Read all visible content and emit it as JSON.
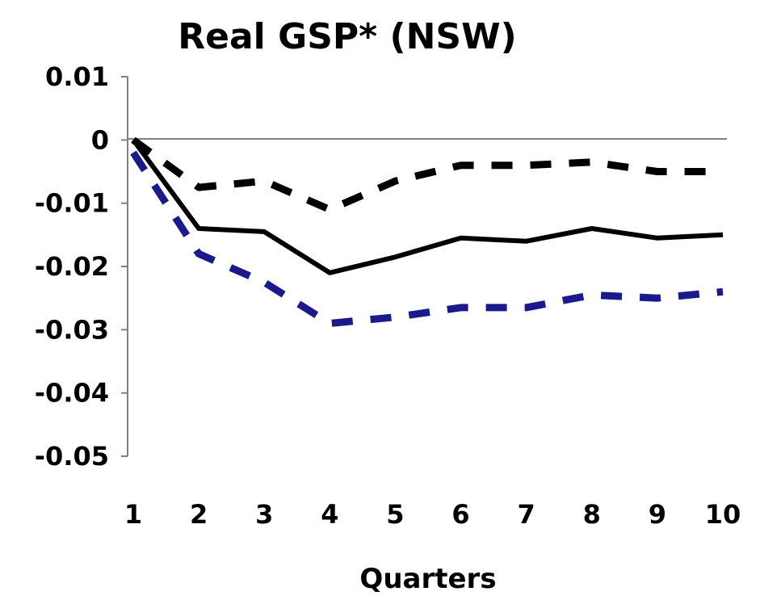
{
  "chart_data": {
    "type": "line",
    "title": "Real GSP* (NSW)",
    "xlabel": "Quarters",
    "ylabel": "",
    "x": [
      1,
      2,
      3,
      4,
      5,
      6,
      7,
      8,
      9,
      10
    ],
    "x_tick_labels": [
      "1",
      "2",
      "3",
      "4",
      "5",
      "6",
      "7",
      "8",
      "9",
      "10"
    ],
    "ylim": [
      -0.05,
      0.01
    ],
    "y_ticks": [
      0.01,
      0,
      -0.01,
      -0.02,
      -0.03,
      -0.04,
      -0.05
    ],
    "y_tick_labels": [
      "0.01",
      "0",
      "-0.01",
      "-0.02",
      "-0.03",
      "-0.04",
      "-0.05"
    ],
    "grid": false,
    "legend": "none",
    "series": [
      {
        "style": "solid",
        "color": "#000000",
        "values": [
          0,
          -0.014,
          -0.0145,
          -0.021,
          -0.0185,
          -0.0155,
          -0.016,
          -0.014,
          -0.0155,
          -0.015
        ]
      },
      {
        "style": "dashed",
        "color": "#000000",
        "values": [
          0,
          -0.0075,
          -0.0065,
          -0.011,
          -0.0065,
          -0.004,
          -0.004,
          -0.0035,
          -0.005,
          -0.005
        ]
      },
      {
        "style": "dashed",
        "color": "#1a1a8c",
        "values": [
          -0.002,
          -0.018,
          -0.0225,
          -0.029,
          -0.028,
          -0.0265,
          -0.0265,
          -0.0245,
          -0.025,
          -0.024
        ]
      }
    ]
  }
}
